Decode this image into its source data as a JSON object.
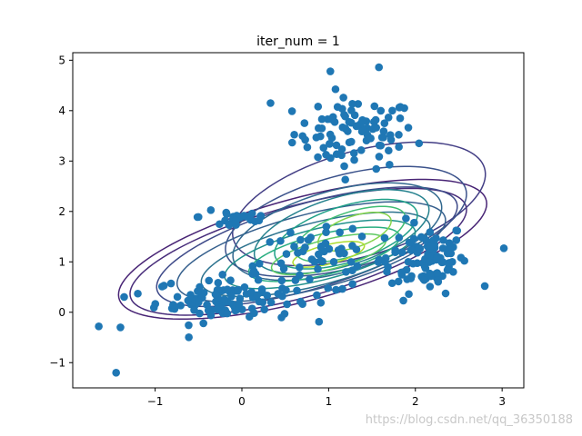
{
  "chart_data": {
    "type": "scatter",
    "title": "iter_num = 1",
    "xlabel": "",
    "ylabel": "",
    "xlim": [
      -1.95,
      3.25
    ],
    "ylim": [
      -1.5,
      5.15
    ],
    "xticks": [
      -1,
      0,
      1,
      2,
      3
    ],
    "yticks": [
      -1,
      0,
      1,
      2,
      3,
      4,
      5
    ],
    "point_color": "#1f77b4",
    "clusters": [
      {
        "center": [
          1.3,
          3.55
        ],
        "spread": [
          0.35,
          0.35
        ],
        "count": 90
      },
      {
        "center": [
          2.15,
          1.1
        ],
        "spread": [
          0.22,
          0.35
        ],
        "count": 95
      },
      {
        "center": [
          -0.2,
          0.25
        ],
        "spread": [
          0.4,
          0.22
        ],
        "count": 95
      },
      {
        "center": [
          0.85,
          1.0
        ],
        "spread": [
          0.45,
          0.3
        ],
        "count": 60
      },
      {
        "center": [
          -0.05,
          1.9
        ],
        "spread": [
          0.22,
          0.15
        ],
        "count": 25
      }
    ],
    "outliers": [
      {
        "x": -1.65,
        "y": -0.28
      },
      {
        "x": -1.45,
        "y": -1.2
      },
      {
        "x": -1.4,
        "y": -0.3
      },
      {
        "x": -1.2,
        "y": 0.37
      },
      {
        "x": 1.02,
        "y": 4.78
      },
      {
        "x": 1.58,
        "y": 4.86
      },
      {
        "x": 0.33,
        "y": 4.15
      },
      {
        "x": 3.02,
        "y": 1.27
      },
      {
        "x": 2.8,
        "y": 0.52
      },
      {
        "x": 1.65,
        "y": 1.0
      },
      {
        "x": 1.2,
        "y": 0.8
      }
    ],
    "contours": [
      {
        "cx": 0.7,
        "cy": 1.25,
        "rx": 2.35,
        "ry": 0.95,
        "angle": 28,
        "color": "#482475"
      },
      {
        "cx": 0.65,
        "cy": 1.2,
        "rx": 2.15,
        "ry": 0.85,
        "angle": 28,
        "color": "#472c7a"
      },
      {
        "cx": 0.75,
        "cy": 1.3,
        "rx": 1.95,
        "ry": 0.78,
        "angle": 30,
        "color": "#3e4a89"
      },
      {
        "cx": 1.35,
        "cy": 2.15,
        "rx": 1.65,
        "ry": 0.95,
        "angle": 35,
        "color": "#433e85"
      },
      {
        "cx": 1.2,
        "cy": 1.8,
        "rx": 1.55,
        "ry": 0.85,
        "angle": 32,
        "color": "#3b528b"
      },
      {
        "cx": 0.8,
        "cy": 1.2,
        "rx": 1.7,
        "ry": 0.7,
        "angle": 27,
        "color": "#355f8d"
      },
      {
        "cx": 1.1,
        "cy": 1.6,
        "rx": 1.35,
        "ry": 0.75,
        "angle": 33,
        "color": "#31688e"
      },
      {
        "cx": 0.85,
        "cy": 1.15,
        "rx": 1.45,
        "ry": 0.58,
        "angle": 27,
        "color": "#2c728e"
      },
      {
        "cx": 1.15,
        "cy": 1.6,
        "rx": 1.15,
        "ry": 0.62,
        "angle": 35,
        "color": "#26828e"
      },
      {
        "cx": 0.9,
        "cy": 1.15,
        "rx": 1.2,
        "ry": 0.48,
        "angle": 26,
        "color": "#21918c"
      },
      {
        "cx": 1.2,
        "cy": 1.55,
        "rx": 0.95,
        "ry": 0.5,
        "angle": 36,
        "color": "#1fa088"
      },
      {
        "cx": 0.95,
        "cy": 1.15,
        "rx": 0.95,
        "ry": 0.38,
        "angle": 26,
        "color": "#28ae80"
      },
      {
        "cx": 1.25,
        "cy": 1.55,
        "rx": 0.75,
        "ry": 0.38,
        "angle": 38,
        "color": "#3fbc73"
      },
      {
        "cx": 1.0,
        "cy": 1.15,
        "rx": 0.72,
        "ry": 0.28,
        "angle": 26,
        "color": "#5ec962"
      },
      {
        "cx": 1.3,
        "cy": 1.6,
        "rx": 0.5,
        "ry": 0.27,
        "angle": 40,
        "color": "#84d44b"
      },
      {
        "cx": 1.0,
        "cy": 1.15,
        "rx": 0.45,
        "ry": 0.18,
        "angle": 26,
        "color": "#addc30"
      }
    ]
  },
  "watermark": "https://blog.csdn.net/qq_36350188"
}
